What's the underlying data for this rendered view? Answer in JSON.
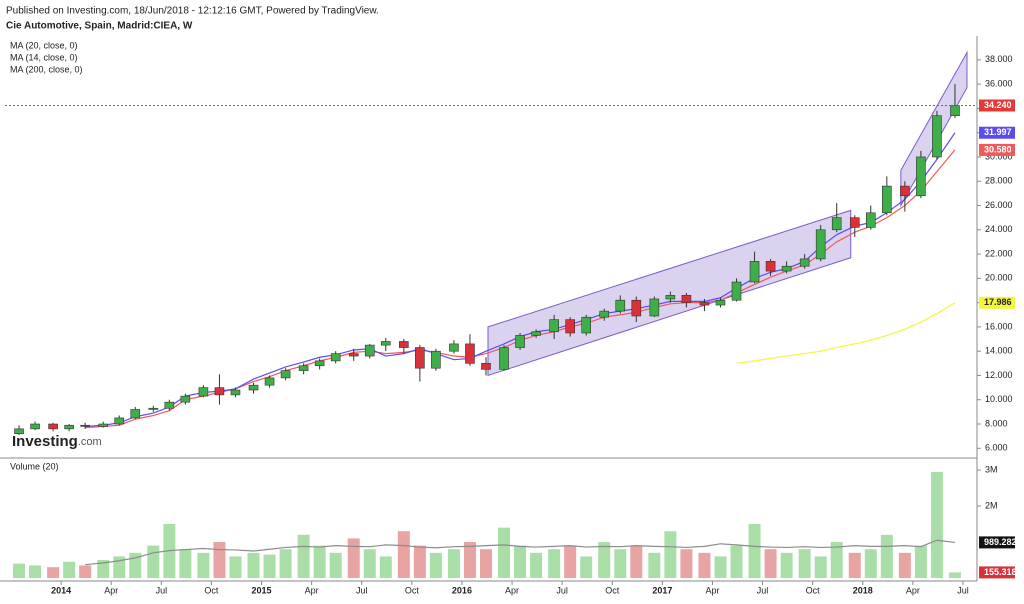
{
  "header": {
    "published": "Published on Investing.com, 18/Jun/2018 - 12:12:16 GMT, Powered by TradingView.",
    "symbol": "Cie Automotive, Spain, Madrid:CIEA, W"
  },
  "logo": {
    "name": "Investing",
    "suffix": ".com"
  },
  "chart_data": {
    "type": "candlestick",
    "x": [
      2013.79,
      2013.87,
      2013.96,
      2014.04,
      2014.12,
      2014.21,
      2014.29,
      2014.37,
      2014.46,
      2014.54,
      2014.62,
      2014.71,
      2014.79,
      2014.87,
      2014.96,
      2015.04,
      2015.12,
      2015.21,
      2015.29,
      2015.37,
      2015.46,
      2015.54,
      2015.62,
      2015.71,
      2015.79,
      2015.87,
      2015.96,
      2016.04,
      2016.12,
      2016.21,
      2016.29,
      2016.37,
      2016.46,
      2016.54,
      2016.62,
      2016.71,
      2016.79,
      2016.87,
      2016.96,
      2017.04,
      2017.12,
      2017.21,
      2017.29,
      2017.37,
      2017.46,
      2017.54,
      2017.62,
      2017.71,
      2017.79,
      2017.87,
      2017.96,
      2018.04,
      2018.12,
      2018.21,
      2018.29,
      2018.37,
      2018.46
    ],
    "open": [
      7.2,
      7.6,
      8.0,
      7.6,
      7.9,
      7.8,
      8.0,
      8.5,
      9.2,
      9.3,
      9.8,
      10.3,
      11.0,
      10.4,
      10.8,
      11.2,
      11.8,
      12.4,
      12.8,
      13.2,
      13.8,
      13.6,
      14.5,
      14.8,
      14.3,
      12.6,
      14.0,
      14.6,
      13.0,
      12.5,
      14.3,
      15.3,
      15.6,
      16.6,
      15.5,
      16.8,
      17.3,
      18.2,
      16.9,
      18.3,
      18.6,
      18.0,
      17.8,
      18.2,
      19.7,
      21.4,
      20.6,
      21.0,
      21.6,
      24.0,
      25.0,
      24.2,
      25.4,
      27.6,
      26.8,
      30.0,
      33.4
    ],
    "high": [
      7.9,
      8.2,
      8.1,
      8.0,
      8.1,
      8.2,
      8.7,
      9.4,
      9.5,
      10.0,
      10.5,
      11.2,
      12.1,
      11.0,
      11.4,
      12.0,
      12.6,
      13.0,
      13.4,
      14.0,
      14.2,
      14.6,
      15.1,
      15.0,
      14.5,
      14.2,
      14.9,
      15.4,
      13.5,
      14.5,
      15.5,
      15.8,
      17.0,
      16.8,
      17.0,
      17.5,
      18.6,
      18.5,
      18.5,
      18.9,
      18.8,
      18.3,
      18.4,
      20.0,
      22.2,
      21.6,
      21.4,
      22.0,
      24.4,
      26.2,
      25.2,
      26.0,
      28.4,
      28.0,
      30.5,
      33.8,
      36.0
    ],
    "low": [
      7.1,
      7.5,
      7.4,
      7.4,
      7.6,
      7.7,
      7.9,
      8.4,
      9.0,
      9.1,
      9.6,
      10.2,
      9.6,
      10.2,
      10.5,
      11.0,
      11.6,
      12.1,
      12.5,
      13.0,
      13.2,
      13.4,
      14.0,
      13.8,
      11.5,
      12.4,
      13.8,
      12.8,
      12.0,
      12.4,
      14.1,
      15.1,
      15.0,
      15.2,
      15.3,
      16.5,
      17.1,
      16.4,
      16.8,
      18.0,
      17.6,
      17.3,
      17.6,
      18.1,
      19.6,
      20.2,
      20.4,
      20.8,
      21.4,
      23.8,
      23.4,
      24.0,
      25.2,
      25.5,
      26.6,
      29.8,
      33.2
    ],
    "close": [
      7.6,
      8.0,
      7.6,
      7.9,
      7.8,
      8.0,
      8.5,
      9.2,
      9.3,
      9.8,
      10.3,
      11.0,
      10.4,
      10.8,
      11.2,
      11.8,
      12.4,
      12.8,
      13.2,
      13.8,
      13.6,
      14.5,
      14.8,
      14.3,
      12.6,
      14.0,
      14.6,
      13.0,
      12.5,
      14.3,
      15.3,
      15.6,
      16.6,
      15.5,
      16.8,
      17.3,
      18.2,
      16.9,
      18.3,
      18.6,
      18.0,
      17.8,
      18.2,
      19.7,
      21.4,
      20.6,
      21.0,
      21.6,
      24.0,
      25.0,
      24.2,
      25.4,
      27.6,
      26.8,
      30.0,
      33.4,
      34.24
    ],
    "close_last": {
      "value": 34.24,
      "label": "34.240"
    },
    "up_color": "#3fae49",
    "down_color": "#d9313a",
    "last_line_color": "#e53935",
    "moving_averages": [
      {
        "name": "MA (20, close, 0)",
        "color": "#ef5a5a",
        "last": {
          "value": 30.58,
          "label": "30.580"
        },
        "values": [
          null,
          null,
          null,
          null,
          7.7,
          7.8,
          7.9,
          8.4,
          8.7,
          9.1,
          10.0,
          10.3,
          10.6,
          10.9,
          11.5,
          11.9,
          12.4,
          12.8,
          13.2,
          13.5,
          13.9,
          14.0,
          13.8,
          13.9,
          14.1,
          13.9,
          13.6,
          13.5,
          13.8,
          14.3,
          14.9,
          15.3,
          15.6,
          16.0,
          16.3,
          16.8,
          17.0,
          17.2,
          17.6,
          17.9,
          18.0,
          18.0,
          18.2,
          18.8,
          19.5,
          20.1,
          20.6,
          21.1,
          22.0,
          23.0,
          23.8,
          24.3,
          25.0,
          26.0,
          27.2,
          28.8,
          30.58
        ]
      },
      {
        "name": "MA (14, close, 0)",
        "color": "#5b4cf0",
        "last": {
          "value": 31.997,
          "label": "31.997"
        },
        "values": [
          null,
          null,
          null,
          null,
          7.8,
          7.9,
          8.1,
          8.6,
          8.9,
          9.4,
          10.3,
          10.6,
          10.7,
          10.9,
          11.7,
          12.2,
          12.7,
          13.1,
          13.5,
          13.7,
          14.1,
          14.2,
          13.6,
          13.8,
          14.2,
          13.8,
          13.3,
          13.4,
          14.0,
          14.6,
          15.2,
          15.6,
          15.8,
          16.2,
          16.6,
          17.1,
          17.3,
          17.5,
          17.8,
          18.1,
          18.1,
          18.1,
          18.4,
          19.2,
          20.0,
          20.5,
          20.8,
          21.4,
          22.6,
          23.6,
          24.3,
          24.6,
          25.4,
          26.5,
          28.0,
          29.8,
          31.997
        ]
      },
      {
        "name": "MA (200, close, 0)",
        "color": "#f5f53a",
        "last": {
          "value": 17.986,
          "label": "17.986"
        },
        "values": [
          null,
          null,
          null,
          null,
          null,
          null,
          null,
          null,
          null,
          null,
          null,
          null,
          null,
          null,
          null,
          null,
          null,
          null,
          null,
          null,
          null,
          null,
          null,
          null,
          null,
          null,
          null,
          null,
          null,
          null,
          null,
          null,
          null,
          null,
          null,
          null,
          null,
          null,
          null,
          null,
          null,
          null,
          null,
          13.0,
          13.2,
          13.4,
          13.6,
          13.8,
          14.0,
          14.3,
          14.6,
          14.9,
          15.3,
          15.8,
          16.4,
          17.1,
          17.986
        ]
      }
    ],
    "channels": [
      {
        "color": "#7a5cc7",
        "points": [
          [
            2016.13,
            12.0
          ],
          [
            2017.94,
            21.7
          ],
          [
            2017.94,
            25.6
          ],
          [
            2016.13,
            16.0
          ]
        ]
      },
      {
        "color": "#7a5cc7",
        "points": [
          [
            2018.19,
            26.0
          ],
          [
            2018.52,
            35.7
          ],
          [
            2018.52,
            38.6
          ],
          [
            2018.19,
            28.9
          ]
        ]
      }
    ],
    "xlim": [
      2013.72,
      2018.56
    ],
    "ylim": [
      5.2,
      39.8
    ],
    "xticks": [
      {
        "value": 2014,
        "label": "2014"
      },
      {
        "value": 2014.25,
        "label": "Apr"
      },
      {
        "value": 2014.5,
        "label": "Jul"
      },
      {
        "value": 2014.75,
        "label": "Oct"
      },
      {
        "value": 2015,
        "label": "2015"
      },
      {
        "value": 2015.25,
        "label": "Apr"
      },
      {
        "value": 2015.5,
        "label": "Jul"
      },
      {
        "value": 2015.75,
        "label": "Oct"
      },
      {
        "value": 2016,
        "label": "2016"
      },
      {
        "value": 2016.25,
        "label": "Apr"
      },
      {
        "value": 2016.5,
        "label": "Jul"
      },
      {
        "value": 2016.75,
        "label": "Oct"
      },
      {
        "value": 2017,
        "label": "2017"
      },
      {
        "value": 2017.25,
        "label": "Apr"
      },
      {
        "value": 2017.5,
        "label": "Jul"
      },
      {
        "value": 2017.75,
        "label": "Oct"
      },
      {
        "value": 2018,
        "label": "2018"
      },
      {
        "value": 2018.25,
        "label": "Apr"
      },
      {
        "value": 2018.5,
        "label": "Jul"
      }
    ],
    "yticks": [
      {
        "value": 6,
        "label": "6.000"
      },
      {
        "value": 8,
        "label": "8.000"
      },
      {
        "value": 10,
        "label": "10.000"
      },
      {
        "value": 12,
        "label": "12.000"
      },
      {
        "value": 14,
        "label": "14.000"
      },
      {
        "value": 16,
        "label": "16.000"
      },
      {
        "value": 18,
        "label": "18.000"
      },
      {
        "value": 20,
        "label": "20.000"
      },
      {
        "value": 22,
        "label": "22.000"
      },
      {
        "value": 24,
        "label": "24.000"
      },
      {
        "value": 26,
        "label": "26.000"
      },
      {
        "value": 28,
        "label": "28.000"
      },
      {
        "value": 30,
        "label": "30.000"
      },
      {
        "value": 32,
        "label": "32.000"
      },
      {
        "value": 34,
        "label": "34.000"
      },
      {
        "value": 36,
        "label": "36.000"
      },
      {
        "value": 38,
        "label": "38.000"
      }
    ],
    "volume": {
      "title": "Volume (20)",
      "values": [
        400000,
        350000,
        300000,
        450000,
        350000,
        500000,
        600000,
        700000,
        900000,
        1500000,
        800000,
        700000,
        1000000,
        600000,
        700000,
        650000,
        800000,
        1200000,
        900000,
        700000,
        1100000,
        800000,
        600000,
        1300000,
        900000,
        700000,
        800000,
        1000000,
        800000,
        1400000,
        900000,
        700000,
        800000,
        900000,
        600000,
        1000000,
        800000,
        900000,
        700000,
        1300000,
        800000,
        700000,
        600000,
        900000,
        1500000,
        800000,
        700000,
        800000,
        600000,
        1000000,
        700000,
        800000,
        1200000,
        700000,
        900000,
        2950000,
        155318
      ],
      "last": {
        "value": 155318,
        "label": "155.318K"
      },
      "ma_color": "#8c8c8c",
      "ma_values": [
        null,
        null,
        null,
        null,
        370000,
        420000,
        480000,
        560000,
        700000,
        760000,
        790000,
        820000,
        790000,
        780000,
        750000,
        800000,
        850000,
        880000,
        860000,
        900000,
        880000,
        870000,
        920000,
        900000,
        860000,
        840000,
        870000,
        880000,
        900000,
        920000,
        880000,
        860000,
        880000,
        900000,
        860000,
        880000,
        870000,
        900000,
        880000,
        870000,
        850000,
        880000,
        950000,
        920000,
        880000,
        860000,
        850000,
        870000,
        850000,
        860000,
        900000,
        880000,
        880000,
        900000,
        870000,
        1050000,
        989282
      ],
      "ma_last": {
        "value": 989282,
        "label": "989.282K"
      },
      "up_color": "#a9dfa6",
      "down_color": "#e8a3a3",
      "ylim": [
        0,
        3280000
      ],
      "yticks": [
        {
          "value": 2000000,
          "label": "2M"
        },
        {
          "value": 3000000,
          "label": "3M"
        }
      ]
    }
  }
}
